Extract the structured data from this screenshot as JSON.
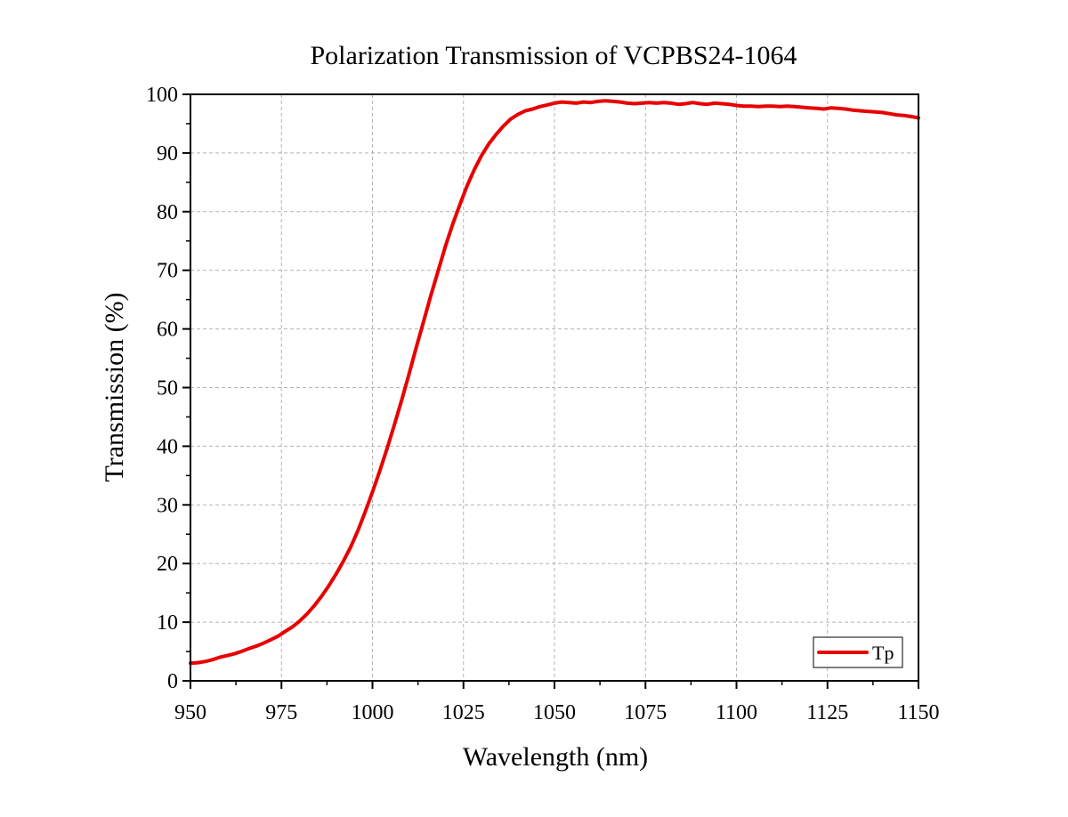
{
  "chart_data": {
    "type": "line",
    "title": "Polarization Transmission of VCPBS24-1064",
    "xlabel": "Wavelength (nm)",
    "ylabel": "Transmission (%)",
    "xlim": [
      950,
      1150
    ],
    "ylim": [
      0,
      100
    ],
    "xticks": [
      950,
      975,
      1000,
      1025,
      1050,
      1075,
      1100,
      1125,
      1150
    ],
    "yticks": [
      0,
      10,
      20,
      30,
      40,
      50,
      60,
      70,
      80,
      90,
      100
    ],
    "grid": true,
    "legend_position": "bottom-right",
    "series": [
      {
        "name": "Tp",
        "color": "#e80000",
        "x": [
          950,
          952,
          954,
          956,
          958,
          960,
          962,
          964,
          966,
          968,
          970,
          972,
          974,
          976,
          978,
          980,
          982,
          984,
          986,
          988,
          990,
          992,
          994,
          996,
          998,
          1000,
          1002,
          1004,
          1006,
          1008,
          1010,
          1012,
          1014,
          1016,
          1018,
          1020,
          1022,
          1024,
          1026,
          1028,
          1030,
          1032,
          1034,
          1036,
          1038,
          1040,
          1042,
          1044,
          1046,
          1048,
          1050,
          1052,
          1054,
          1056,
          1058,
          1060,
          1062,
          1064,
          1066,
          1068,
          1070,
          1072,
          1074,
          1076,
          1078,
          1080,
          1082,
          1084,
          1086,
          1088,
          1090,
          1092,
          1094,
          1096,
          1098,
          1100,
          1102,
          1104,
          1106,
          1108,
          1110,
          1112,
          1114,
          1116,
          1118,
          1120,
          1122,
          1124,
          1126,
          1128,
          1130,
          1132,
          1134,
          1136,
          1138,
          1140,
          1142,
          1144,
          1146,
          1148,
          1150
        ],
        "y": [
          3.0,
          3.1,
          3.3,
          3.6,
          4.0,
          4.3,
          4.6,
          5.0,
          5.5,
          5.9,
          6.4,
          7.0,
          7.6,
          8.4,
          9.2,
          10.2,
          11.4,
          12.8,
          14.4,
          16.2,
          18.2,
          20.4,
          22.8,
          25.6,
          28.8,
          32.2,
          35.8,
          39.6,
          43.6,
          47.8,
          52.2,
          56.8,
          61.2,
          65.6,
          69.8,
          74.0,
          77.8,
          81.2,
          84.4,
          87.2,
          89.6,
          91.6,
          93.2,
          94.6,
          95.8,
          96.6,
          97.2,
          97.5,
          97.9,
          98.2,
          98.5,
          98.7,
          98.6,
          98.5,
          98.7,
          98.6,
          98.8,
          98.9,
          98.8,
          98.7,
          98.5,
          98.4,
          98.5,
          98.6,
          98.5,
          98.6,
          98.5,
          98.3,
          98.4,
          98.6,
          98.4,
          98.3,
          98.5,
          98.4,
          98.3,
          98.1,
          98.0,
          98.0,
          97.9,
          98.0,
          98.0,
          97.9,
          98.0,
          97.9,
          97.8,
          97.7,
          97.6,
          97.5,
          97.7,
          97.6,
          97.5,
          97.3,
          97.2,
          97.1,
          97.0,
          96.9,
          96.7,
          96.5,
          96.4,
          96.2,
          96.0
        ]
      }
    ]
  }
}
